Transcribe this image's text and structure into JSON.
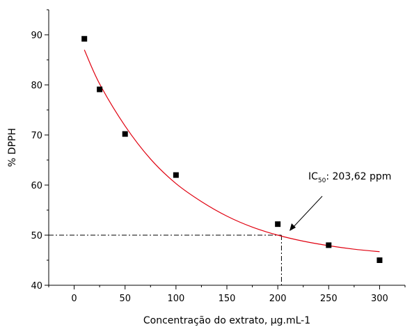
{
  "chart_data": {
    "type": "scatter",
    "title": "",
    "xlabel": "Concentração do extrato, µg.mL-1",
    "ylabel": "% DPPH",
    "xlim": [
      -25,
      325
    ],
    "ylim": [
      40,
      95
    ],
    "xticks": [
      0,
      50,
      100,
      150,
      200,
      250,
      300
    ],
    "yticks": [
      40,
      50,
      60,
      70,
      80,
      90
    ],
    "grid": false,
    "legend": "none",
    "points": {
      "x": [
        10,
        25,
        50,
        100,
        200,
        250,
        300
      ],
      "y": [
        89.2,
        79.1,
        70.2,
        62.0,
        52.2,
        48.0,
        45.0
      ]
    },
    "fit_curve": {
      "type": "exponential decay",
      "x": [
        10,
        25,
        50,
        75,
        100,
        125,
        150,
        175,
        200,
        225,
        250,
        275,
        300
      ],
      "y": [
        87.0,
        80.2,
        71.8,
        65.2,
        60.3,
        56.7,
        53.8,
        51.6,
        50.0,
        48.8,
        47.9,
        47.2,
        46.7
      ],
      "color": "#e0000f"
    },
    "reference": {
      "x": 203.62,
      "y": 50
    },
    "annotation": {
      "text_main": "IC",
      "text_sub": "50",
      "text_rest": ": 203,62 ppm"
    },
    "marker_color": "#000000"
  }
}
